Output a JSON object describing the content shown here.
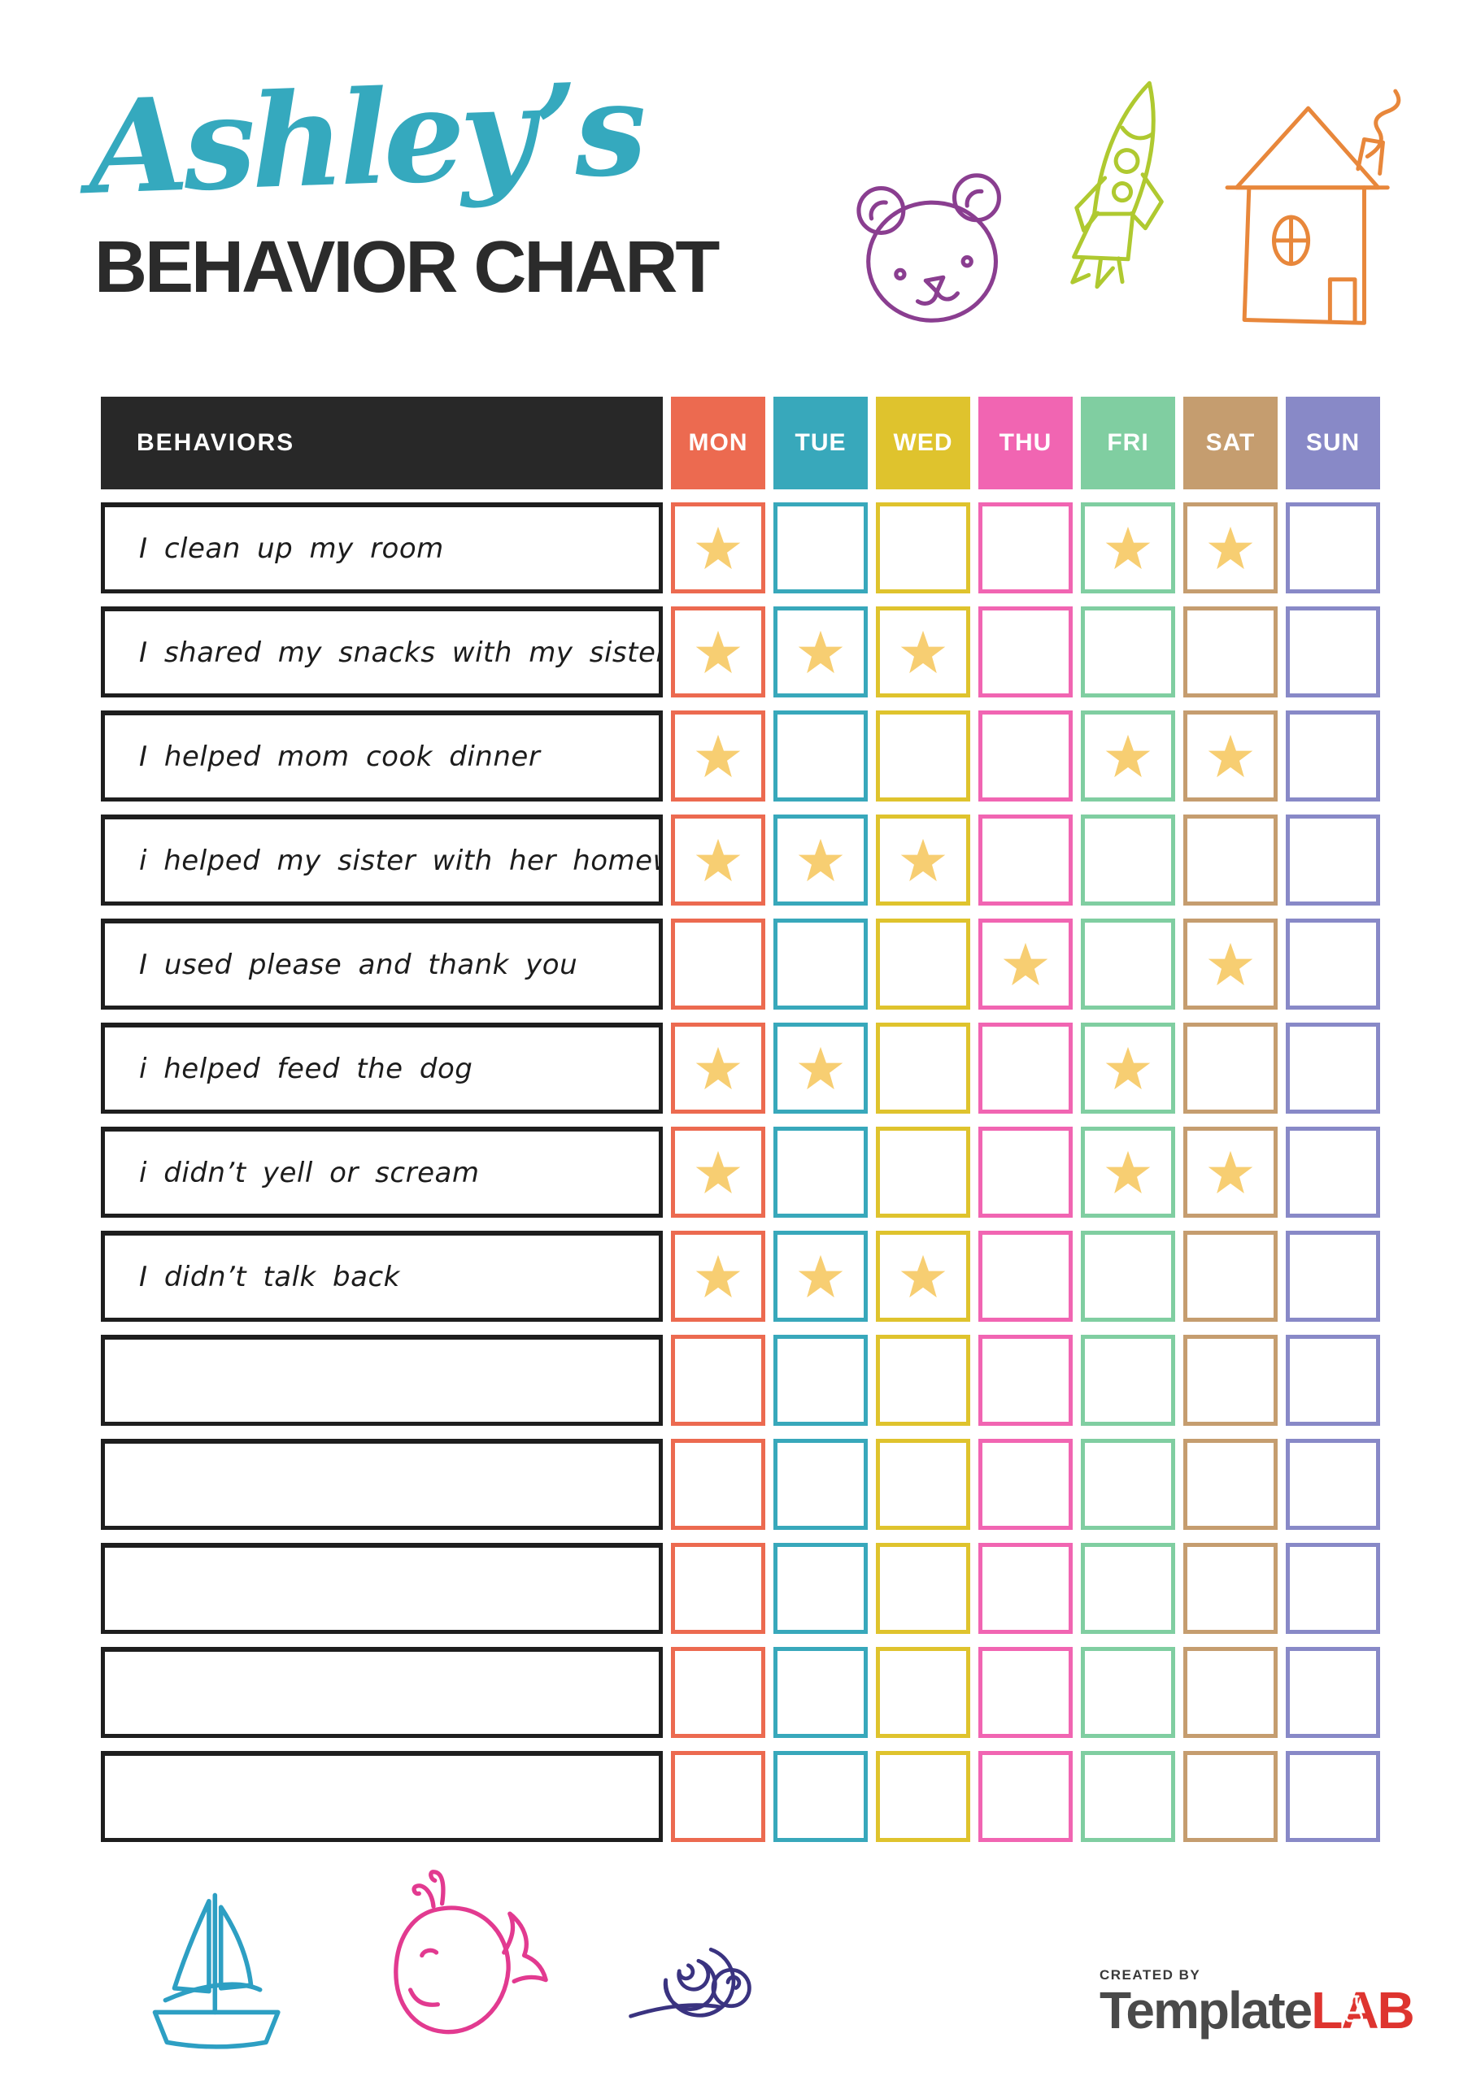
{
  "header": {
    "name_script": "Ashley’s",
    "name_color": "#35A9BE",
    "title": "BEHAVIOR CHART",
    "title_color": "#2B2B2B",
    "doodles": [
      {
        "icon": "bear-icon",
        "color": "#8A3E90"
      },
      {
        "icon": "rocket-icon",
        "color": "#AFC930"
      },
      {
        "icon": "house-icon",
        "color": "#E8873B"
      }
    ]
  },
  "table": {
    "header_label": "BEHAVIORS",
    "header_bg": "#282828",
    "star_color": "#F7CE72",
    "days": [
      {
        "label": "MON",
        "color": "#EC6A50"
      },
      {
        "label": "TUE",
        "color": "#38A8BB"
      },
      {
        "label": "WED",
        "color": "#DFC32D"
      },
      {
        "label": "THU",
        "color": "#F165B2"
      },
      {
        "label": "FRI",
        "color": "#80CEA1"
      },
      {
        "label": "SAT",
        "color": "#C59D6F"
      },
      {
        "label": "SUN",
        "color": "#8889C7"
      }
    ],
    "rows": [
      {
        "label": "I clean up my room",
        "stars": [
          "MON",
          "FRI",
          "SAT"
        ]
      },
      {
        "label": "I shared my snacks with my sister",
        "stars": [
          "MON",
          "TUE",
          "WED"
        ]
      },
      {
        "label": "I helped mom cook dinner",
        "stars": [
          "MON",
          "FRI",
          "SAT"
        ]
      },
      {
        "label": "i helped my sister with her homework",
        "stars": [
          "MON",
          "TUE",
          "WED"
        ]
      },
      {
        "label": "I used please and thank you",
        "stars": [
          "THU",
          "SAT"
        ]
      },
      {
        "label": "i helped feed the dog",
        "stars": [
          "MON",
          "TUE",
          "FRI"
        ]
      },
      {
        "label": "i didn’t yell or scream",
        "stars": [
          "MON",
          "FRI",
          "SAT"
        ]
      },
      {
        "label": "I didn’t talk back",
        "stars": [
          "MON",
          "TUE",
          "WED"
        ]
      },
      {
        "label": "",
        "stars": []
      },
      {
        "label": "",
        "stars": []
      },
      {
        "label": "",
        "stars": []
      },
      {
        "label": "",
        "stars": []
      },
      {
        "label": "",
        "stars": []
      }
    ]
  },
  "footer": {
    "doodles": [
      {
        "icon": "sailboat-icon",
        "color": "#2D9FC3"
      },
      {
        "icon": "whale-icon",
        "color": "#E23A90"
      },
      {
        "icon": "snail-icon",
        "color": "#3A3380"
      }
    ],
    "credit": "CREATED BY",
    "brand_primary": "Template",
    "brand_primary_color": "#4A4A4A",
    "brand_accent": "LAB",
    "brand_accent_color": "#DE342F"
  }
}
